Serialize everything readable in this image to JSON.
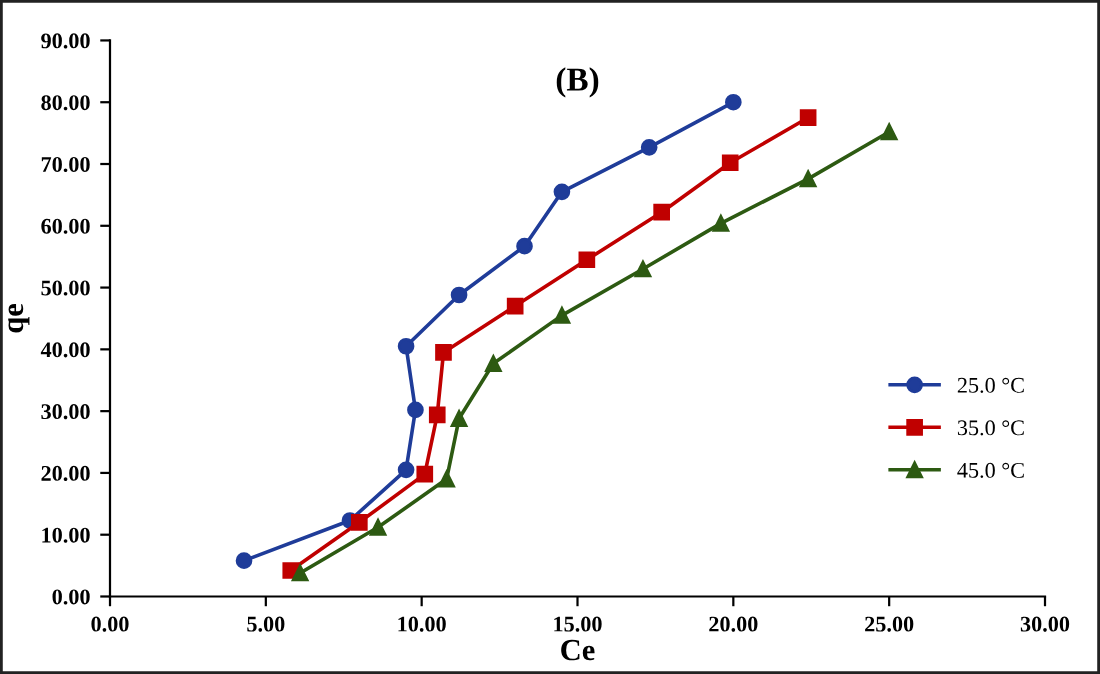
{
  "chart_data": {
    "type": "line",
    "title": "(B)",
    "xlabel": "Ce",
    "ylabel": "qe",
    "xlim": [
      0,
      30
    ],
    "xticks": [
      {
        "value": 0,
        "label": "0.00"
      },
      {
        "value": 5,
        "label": "5.00"
      },
      {
        "value": 10,
        "label": "10.00"
      },
      {
        "value": 15,
        "label": "15.00"
      },
      {
        "value": 20,
        "label": "20.00"
      },
      {
        "value": 25,
        "label": "25.00"
      },
      {
        "value": 30,
        "label": "30.00"
      }
    ],
    "ylim": [
      0,
      90
    ],
    "yticks": [
      {
        "value": 0,
        "label": "0.00"
      },
      {
        "value": 10,
        "label": "10.00"
      },
      {
        "value": 20,
        "label": "20.00"
      },
      {
        "value": 30,
        "label": "30.00"
      },
      {
        "value": 40,
        "label": "40.00"
      },
      {
        "value": 50,
        "label": "50.00"
      },
      {
        "value": 60,
        "label": "60.00"
      },
      {
        "value": 70,
        "label": "70.00"
      },
      {
        "value": 80,
        "label": "80.00"
      },
      {
        "value": 90,
        "label": "90.00"
      }
    ],
    "grid": false,
    "legend": "right",
    "line_style": "solid",
    "series": [
      {
        "name": "25.0 °C",
        "color": "#1f3c99",
        "marker": "circle",
        "x": [
          4.3,
          7.7,
          9.5,
          9.8,
          9.5,
          11.2,
          13.3,
          14.5,
          17.3,
          20.0
        ],
        "values": [
          5.8,
          12.3,
          20.5,
          30.2,
          40.5,
          48.8,
          56.7,
          65.5,
          72.7,
          80.0
        ]
      },
      {
        "name": "35.0 °C",
        "color": "#c00000",
        "marker": "square",
        "x": [
          5.8,
          8.0,
          10.1,
          10.5,
          10.7,
          13.0,
          15.3,
          17.7,
          19.9,
          22.4
        ],
        "values": [
          4.2,
          12.0,
          19.8,
          29.4,
          39.5,
          47.0,
          54.5,
          62.2,
          70.2,
          77.5
        ]
      },
      {
        "name": "45.0 °C",
        "color": "#2d5a12",
        "marker": "triangle",
        "x": [
          6.1,
          8.6,
          10.8,
          11.2,
          12.3,
          14.5,
          17.1,
          19.6,
          22.4,
          25.0
        ],
        "values": [
          3.8,
          11.2,
          19.0,
          28.8,
          37.7,
          45.5,
          53.0,
          60.4,
          67.6,
          75.2
        ]
      }
    ]
  }
}
